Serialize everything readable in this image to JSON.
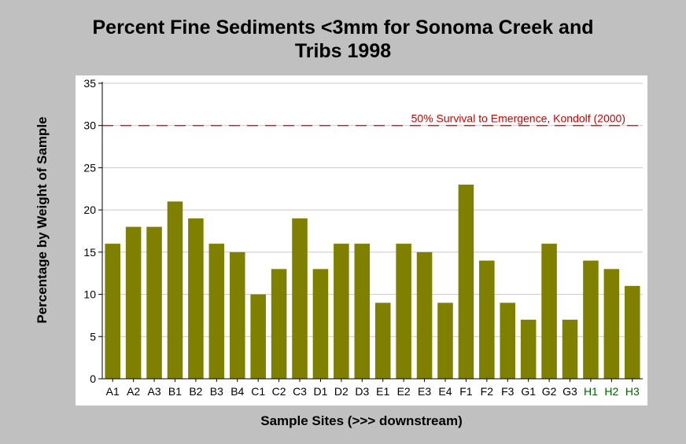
{
  "chart_data": {
    "type": "bar",
    "title": "Percent Fine Sediments <3mm for Sonoma Creek and Tribs 1998",
    "xlabel": "Sample Sites (>>> downstream)",
    "ylabel": "Percentage by Weight of Sample",
    "categories": [
      "A1",
      "A2",
      "A3",
      "B1",
      "B2",
      "B3",
      "B4",
      "C1",
      "C2",
      "C3",
      "D1",
      "D2",
      "D3",
      "E1",
      "E2",
      "E3",
      "E4",
      "F1",
      "F2",
      "F3",
      "G1",
      "G2",
      "G3",
      "H1",
      "H2",
      "H3"
    ],
    "values": [
      16,
      18,
      18,
      21,
      19,
      16,
      15,
      10,
      13,
      19,
      13,
      16,
      16,
      9,
      16,
      15,
      9,
      23,
      14,
      9,
      7,
      16,
      7,
      14,
      13,
      11
    ],
    "ylim": [
      0,
      35
    ],
    "yticks": [
      0,
      5,
      10,
      15,
      20,
      25,
      30,
      35
    ],
    "grid": true,
    "bar_color": "#808000",
    "reference_line": {
      "value": 30,
      "label": "50% Survival to Emergence, Kondolf (2000)",
      "color": "#cc0000"
    },
    "tick_label_colors": {
      "default": "#000000",
      "H": "#006400"
    }
  }
}
